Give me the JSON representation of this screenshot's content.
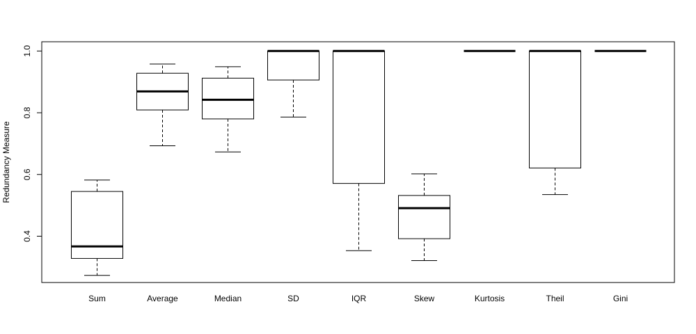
{
  "chart_data": {
    "type": "box",
    "ylabel": "Redundancy Measure",
    "ylim": [
      0.25,
      1.03
    ],
    "yticks": [
      0.4,
      0.6,
      0.8,
      1.0
    ],
    "ytick_labels": [
      "0.4",
      "0.6",
      "0.8",
      "1.0"
    ],
    "grid": false,
    "categories": [
      "Sum",
      "Average",
      "Median",
      "SD",
      "IQR",
      "Skew",
      "Kurtosis",
      "Theil",
      "Gini"
    ],
    "boxes": [
      {
        "name": "Sum",
        "whisker_low": 0.273,
        "q1": 0.328,
        "median": 0.367,
        "q3": 0.545,
        "whisker_high": 0.582
      },
      {
        "name": "Average",
        "whisker_low": 0.693,
        "q1": 0.809,
        "median": 0.869,
        "q3": 0.928,
        "whisker_high": 0.958
      },
      {
        "name": "Median",
        "whisker_low": 0.673,
        "q1": 0.78,
        "median": 0.842,
        "q3": 0.912,
        "whisker_high": 0.949
      },
      {
        "name": "SD",
        "whisker_low": 0.786,
        "q1": 0.906,
        "median": 1.0,
        "q3": 1.0,
        "whisker_high": 1.0
      },
      {
        "name": "IQR",
        "whisker_low": 0.353,
        "q1": 0.571,
        "median": 1.0,
        "q3": 1.0,
        "whisker_high": 1.0
      },
      {
        "name": "Skew",
        "whisker_low": 0.321,
        "q1": 0.392,
        "median": 0.491,
        "q3": 0.532,
        "whisker_high": 0.602
      },
      {
        "name": "Kurtosis",
        "whisker_low": 1.0,
        "q1": 1.0,
        "median": 1.0,
        "q3": 1.0,
        "whisker_high": 1.0
      },
      {
        "name": "Theil",
        "whisker_low": 0.535,
        "q1": 0.621,
        "median": 1.0,
        "q3": 1.0,
        "whisker_high": 1.0
      },
      {
        "name": "Gini",
        "whisker_low": 1.0,
        "q1": 1.0,
        "median": 1.0,
        "q3": 1.0,
        "whisker_high": 1.0
      }
    ],
    "colors": {
      "box_fill": "#ffffff",
      "stroke": "#000000"
    }
  }
}
